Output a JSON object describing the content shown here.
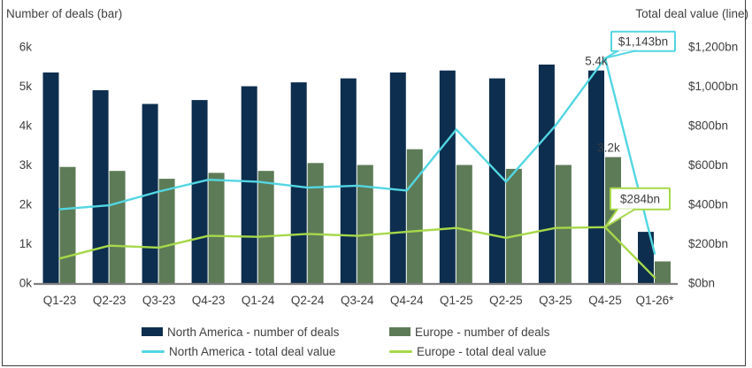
{
  "chart_data": {
    "type": "combo-bar-line",
    "title": "",
    "legend_position": "bottom",
    "categories": [
      "Q1-23",
      "Q2-23",
      "Q3-23",
      "Q4-23",
      "Q1-24",
      "Q2-24",
      "Q3-24",
      "Q4-24",
      "Q1-25",
      "Q2-25",
      "Q3-25",
      "Q4-25",
      "Q1-26*"
    ],
    "left_axis": {
      "title": "Number of deals (bar)",
      "tick_labels": [
        "0k",
        "1k",
        "2k",
        "3k",
        "4k",
        "5k",
        "6k"
      ],
      "min": 0,
      "max": 6000
    },
    "right_axis": {
      "title": "Total deal value (line)",
      "tick_labels": [
        "$0bn",
        "$200bn",
        "$400bn",
        "$600bn",
        "$800bn",
        "$1,000bn",
        "$1,200bn"
      ],
      "min": 0,
      "max": 1200
    },
    "series": [
      {
        "name": "North America - number of deals",
        "type": "bar",
        "axis": "left",
        "color": "#0d2e4e",
        "values": [
          5350,
          4900,
          4550,
          4650,
          5000,
          5100,
          5200,
          5350,
          5400,
          5200,
          5550,
          5400,
          1300
        ]
      },
      {
        "name": "Europe - number of deals",
        "type": "bar",
        "axis": "left",
        "color": "#5d7b57",
        "values": [
          2950,
          2850,
          2650,
          2800,
          2850,
          3050,
          3000,
          3400,
          3000,
          2900,
          3000,
          3200,
          550
        ]
      },
      {
        "name": "North America - total deal value",
        "type": "line",
        "axis": "right",
        "color": "#53d6e2",
        "values": [
          375,
          395,
          465,
          525,
          515,
          485,
          495,
          470,
          780,
          515,
          800,
          1143,
          150
        ]
      },
      {
        "name": "Europe - total deal value",
        "type": "line",
        "axis": "right",
        "color": "#a6d84a",
        "values": [
          125,
          190,
          180,
          240,
          235,
          250,
          240,
          260,
          280,
          230,
          280,
          284,
          28
        ]
      }
    ],
    "annotations": [
      {
        "text": "5.4k",
        "style": "text",
        "series_index": 0,
        "category": "Q4-25"
      },
      {
        "text": "3.2k",
        "style": "text",
        "series_index": 1,
        "category": "Q4-25"
      },
      {
        "text": "$1,143bn",
        "style": "callout",
        "series_index": 2,
        "category": "Q4-25",
        "border_color": "#53d6e2"
      },
      {
        "text": "$284bn",
        "style": "callout",
        "series_index": 3,
        "category": "Q4-25",
        "border_color": "#a6d84a"
      }
    ]
  },
  "style": {
    "text_color": "#3f3f3f",
    "axis_line_color": "#808080",
    "frame_border_color": "#3c3c3c",
    "background": "#ffffff"
  }
}
